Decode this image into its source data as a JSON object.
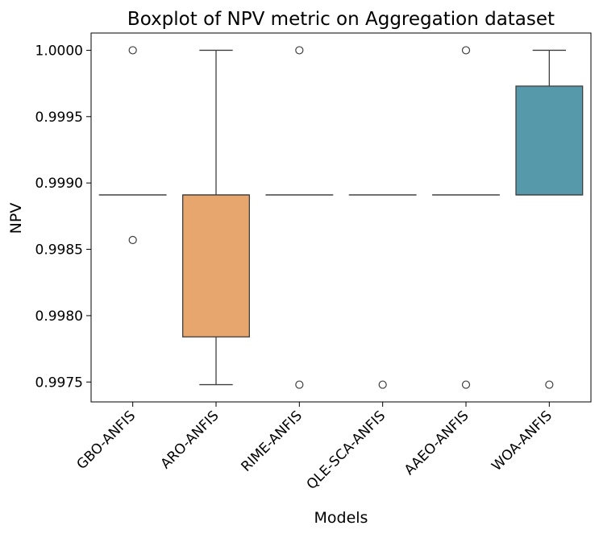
{
  "chart_data": {
    "type": "boxplot",
    "title": "Boxplot of NPV metric on Aggregation dataset",
    "xlabel": "Models",
    "ylabel": "NPV",
    "ylim": [
      0.99735,
      1.00013
    ],
    "yticks": [
      "0.9975",
      "0.9980",
      "0.9985",
      "0.9990",
      "0.9995",
      "1.0000"
    ],
    "grid": false,
    "categories": [
      "GBO-ANFIS",
      "ARO-ANFIS",
      "RIME-ANFIS",
      "QLE-SCA-ANFIS",
      "AAEO-ANFIS",
      "WOA-ANFIS"
    ],
    "boxes": [
      {
        "name": "GBO-ANFIS",
        "q1": 0.99891,
        "median": 0.99891,
        "q3": 0.99891,
        "whisker_low": 0.99891,
        "whisker_high": 0.99891,
        "outliers": [
          1.0,
          0.99857
        ],
        "color": "#3a75af"
      },
      {
        "name": "ARO-ANFIS",
        "q1": 0.99784,
        "median": 0.99891,
        "q3": 0.99891,
        "whisker_low": 0.99748,
        "whisker_high": 1.0,
        "outliers": [],
        "color": "#e8a66f"
      },
      {
        "name": "RIME-ANFIS",
        "q1": 0.99891,
        "median": 0.99891,
        "q3": 0.99891,
        "whisker_low": 0.99891,
        "whisker_high": 0.99891,
        "outliers": [
          1.0,
          0.99748
        ],
        "color": "#4c9a5a"
      },
      {
        "name": "QLE-SCA-ANFIS",
        "q1": 0.99891,
        "median": 0.99891,
        "q3": 0.99891,
        "whisker_low": 0.99891,
        "whisker_high": 0.99891,
        "outliers": [
          0.99748
        ],
        "color": "#c44e52"
      },
      {
        "name": "AAEO-ANFIS",
        "q1": 0.99891,
        "median": 0.99891,
        "q3": 0.99891,
        "whisker_low": 0.99891,
        "whisker_high": 0.99891,
        "outliers": [
          1.0,
          0.99748
        ],
        "color": "#8172b3"
      },
      {
        "name": "WOA-ANFIS",
        "q1": 0.99891,
        "median": 0.99891,
        "q3": 0.99973,
        "whisker_low": 0.99891,
        "whisker_high": 1.0,
        "outliers": [
          0.99748
        ],
        "color": "#5699aa"
      }
    ]
  }
}
